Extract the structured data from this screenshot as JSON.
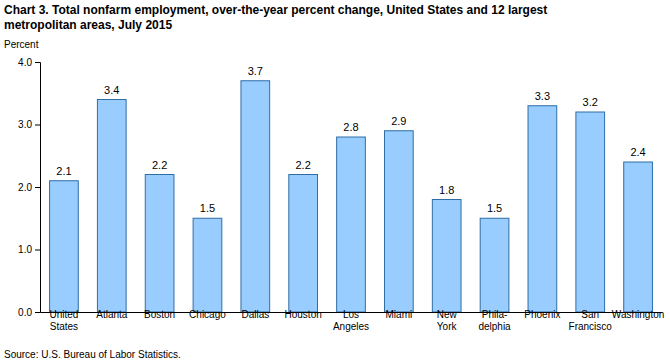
{
  "chart_data": {
    "type": "bar",
    "title": "Chart 3. Total nonfarm employment, over-the-year percent change, United States and 12 largest\nmetropolitan areas, July 2015",
    "y_label": "Percent",
    "source": "Source: U.S. Bureau of Labor Statistics.",
    "categories": [
      "United\nStates",
      "Atlanta",
      "Boston",
      "Chicago",
      "Dallas",
      "Houston",
      "Los\nAngeles",
      "Miami",
      "New\nYork",
      "Phila-\ndelphia",
      "Phoenix",
      "San\nFrancisco",
      "Washington"
    ],
    "values": [
      2.1,
      3.4,
      2.2,
      1.5,
      3.7,
      2.2,
      2.8,
      2.9,
      1.8,
      1.5,
      3.3,
      3.2,
      2.4
    ],
    "color": "#99ccff",
    "ylim": [
      0,
      4
    ],
    "yticks": [
      {
        "value": 0,
        "label": "0.0"
      },
      {
        "value": 1,
        "label": "1.0"
      },
      {
        "value": 2,
        "label": "2.0"
      },
      {
        "value": 3,
        "label": "3.0"
      },
      {
        "value": 4,
        "label": "4.0"
      }
    ],
    "grid": false,
    "data_labels": true
  }
}
